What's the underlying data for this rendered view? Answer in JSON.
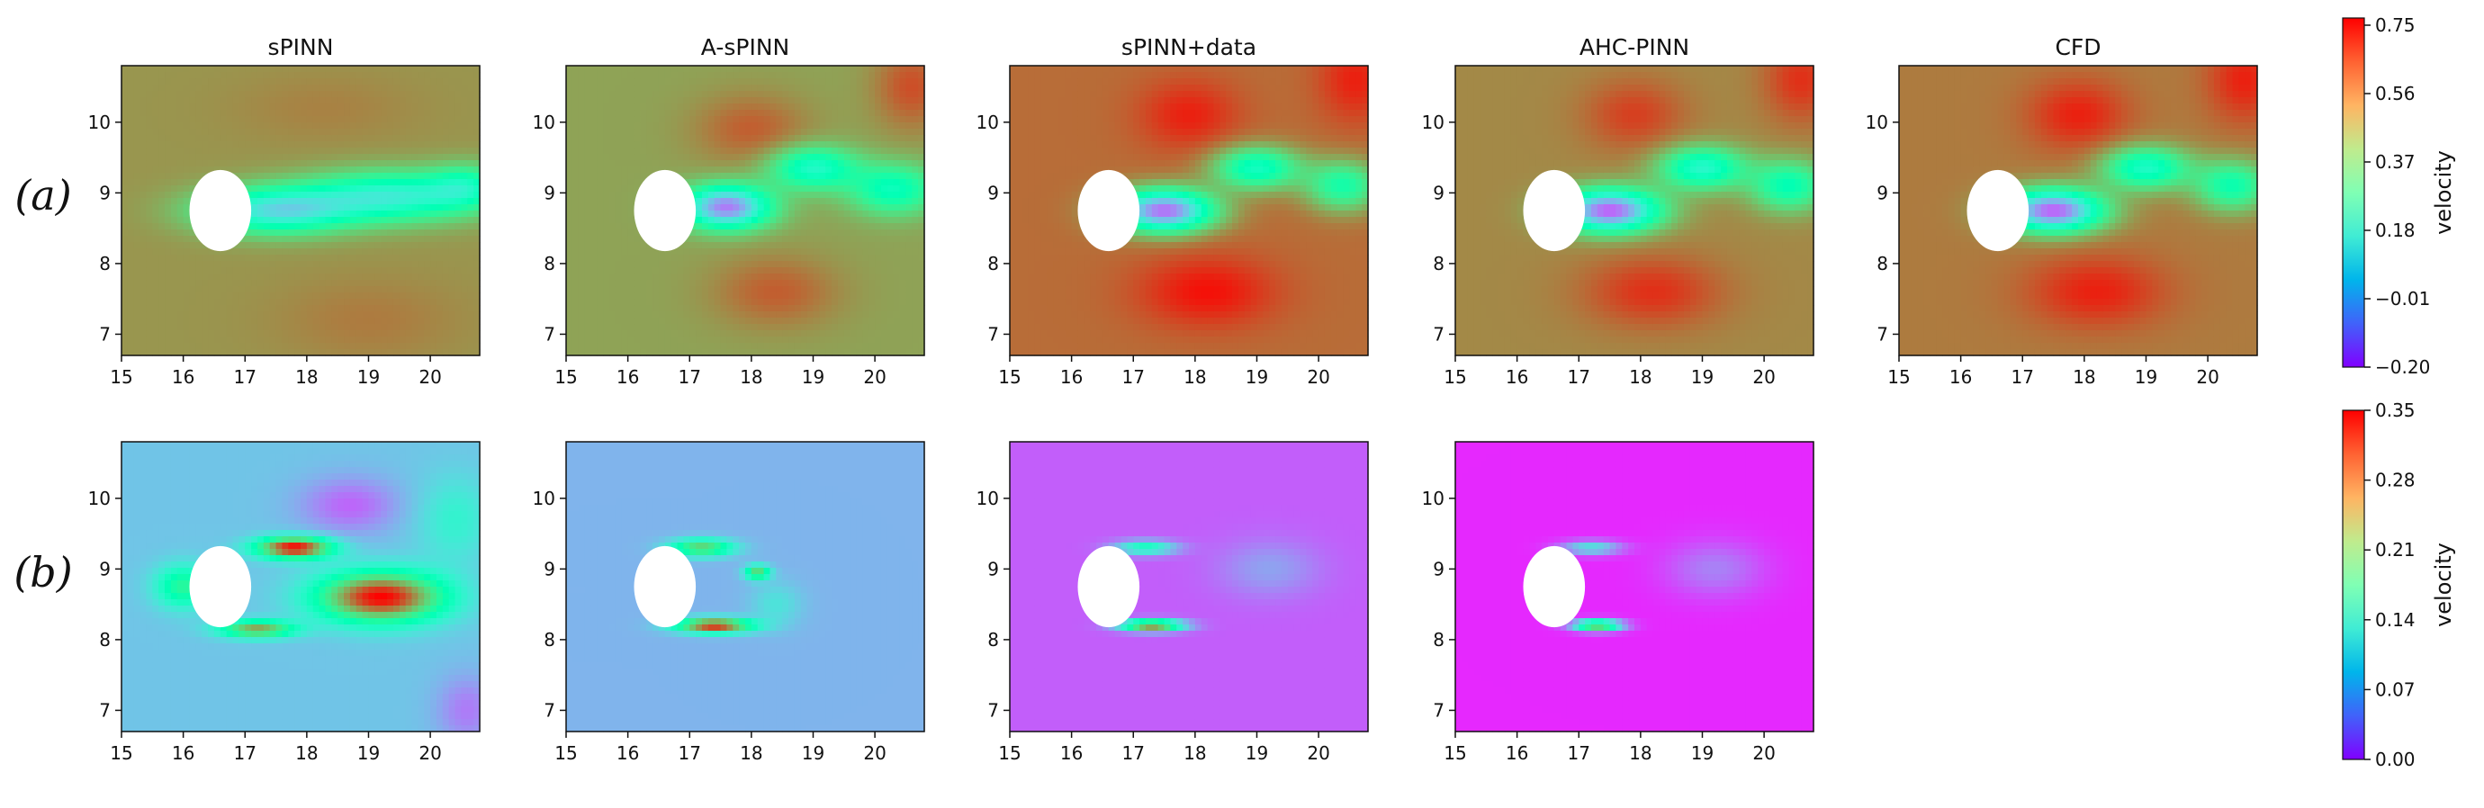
{
  "row_labels": [
    "(a)",
    "(b)"
  ],
  "chart_data": [
    {
      "type": "heatmap",
      "row": "(a)",
      "panels": [
        {
          "title": "sPINN",
          "field": "a_spinn"
        },
        {
          "title": "A-sPINN",
          "field": "a_aspinn"
        },
        {
          "title": "sPINN+data",
          "field": "a_spinndata"
        },
        {
          "title": "AHC-PINN",
          "field": "a_ahc"
        },
        {
          "title": "CFD",
          "field": "a_cfd"
        }
      ],
      "x_ticks": [
        "15",
        "16",
        "17",
        "18",
        "19",
        "20"
      ],
      "y_ticks": [
        "7",
        "8",
        "9",
        "10"
      ],
      "xlim": [
        15,
        20.8
      ],
      "ylim": [
        6.7,
        10.8
      ],
      "cylinder": {
        "cx": 16.6,
        "cy": 8.75,
        "r": 0.5
      },
      "colorbar": {
        "label": "velocity",
        "range": [
          -0.2,
          0.77
        ],
        "ticks": [
          "0.75",
          "0.56",
          "0.37",
          "0.18",
          "−0.01",
          "−0.20"
        ],
        "colormap": "rainbow"
      }
    },
    {
      "type": "heatmap",
      "row": "(b)",
      "panels": [
        {
          "title": "",
          "field": "b_spinn"
        },
        {
          "title": "",
          "field": "b_aspinn"
        },
        {
          "title": "",
          "field": "b_spinndata"
        },
        {
          "title": "",
          "field": "b_ahc"
        }
      ],
      "x_ticks": [
        "15",
        "16",
        "17",
        "18",
        "19",
        "20"
      ],
      "y_ticks": [
        "7",
        "8",
        "9",
        "10"
      ],
      "xlim": [
        15,
        20.8
      ],
      "ylim": [
        6.7,
        10.8
      ],
      "cylinder": {
        "cx": 16.6,
        "cy": 8.75,
        "r": 0.5
      },
      "colorbar": {
        "label": "velocity",
        "range": [
          0,
          0.35
        ],
        "ticks": [
          "0.35",
          "0.28",
          "0.21",
          "0.14",
          "0.07",
          "0.00"
        ],
        "colormap": "rainbow"
      }
    }
  ]
}
